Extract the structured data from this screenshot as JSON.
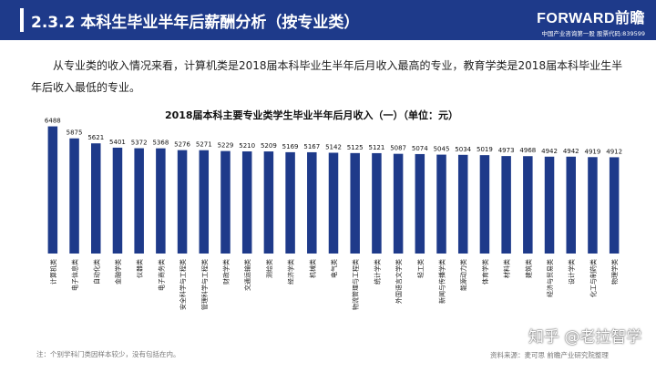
{
  "header": {
    "title": "2.3.2  本科生毕业半年后薪酬分析（按专业类）",
    "logo_text": "FORWARD前瞻",
    "logo_subtext": "中国产业咨询第一股  股票代码:839599"
  },
  "intro_text": "从专业类的收入情况来看，计算机类是2018届本科毕业生半年后月收入最高的专业，教育学类是2018届本科毕业生半年后收入最低的专业。",
  "colors": {
    "header_bg": "#1e3a8a",
    "bar": "#1e3a8a"
  },
  "chart_data": {
    "type": "bar",
    "title": "2018届本科主要专业类学生毕业半年后月收入（一）（单位：元）",
    "categories": [
      "计算机类",
      "电子信息类",
      "自动化类",
      "金融学类",
      "仪器类",
      "电子商务类",
      "安全科学与工程类",
      "管理科学与工程类",
      "财政学类",
      "交通运输类",
      "测绘类",
      "经济学类",
      "机械类",
      "电气类",
      "物流管理与工程类",
      "统计学类",
      "外国语言文学类",
      "轻工类",
      "新闻与传播学类",
      "能源动力类",
      "体育学类",
      "材料类",
      "建筑类",
      "经济与贸易类",
      "设计学类",
      "化工与制药类",
      "物理学类"
    ],
    "values": [
      6488,
      5875,
      5621,
      5401,
      5372,
      5368,
      5276,
      5271,
      5229,
      5210,
      5209,
      5169,
      5167,
      5142,
      5125,
      5121,
      5087,
      5074,
      5045,
      5034,
      5019,
      4973,
      4968,
      4942,
      4942,
      4919,
      4912
    ],
    "ylim": [
      0,
      6700
    ]
  },
  "footnote": "注：个别学科门类因样本较少，没有包括在内。",
  "source": "资料来源：麦可思 前瞻产业研究院整理",
  "watermark": "知乎 @老拉智学"
}
